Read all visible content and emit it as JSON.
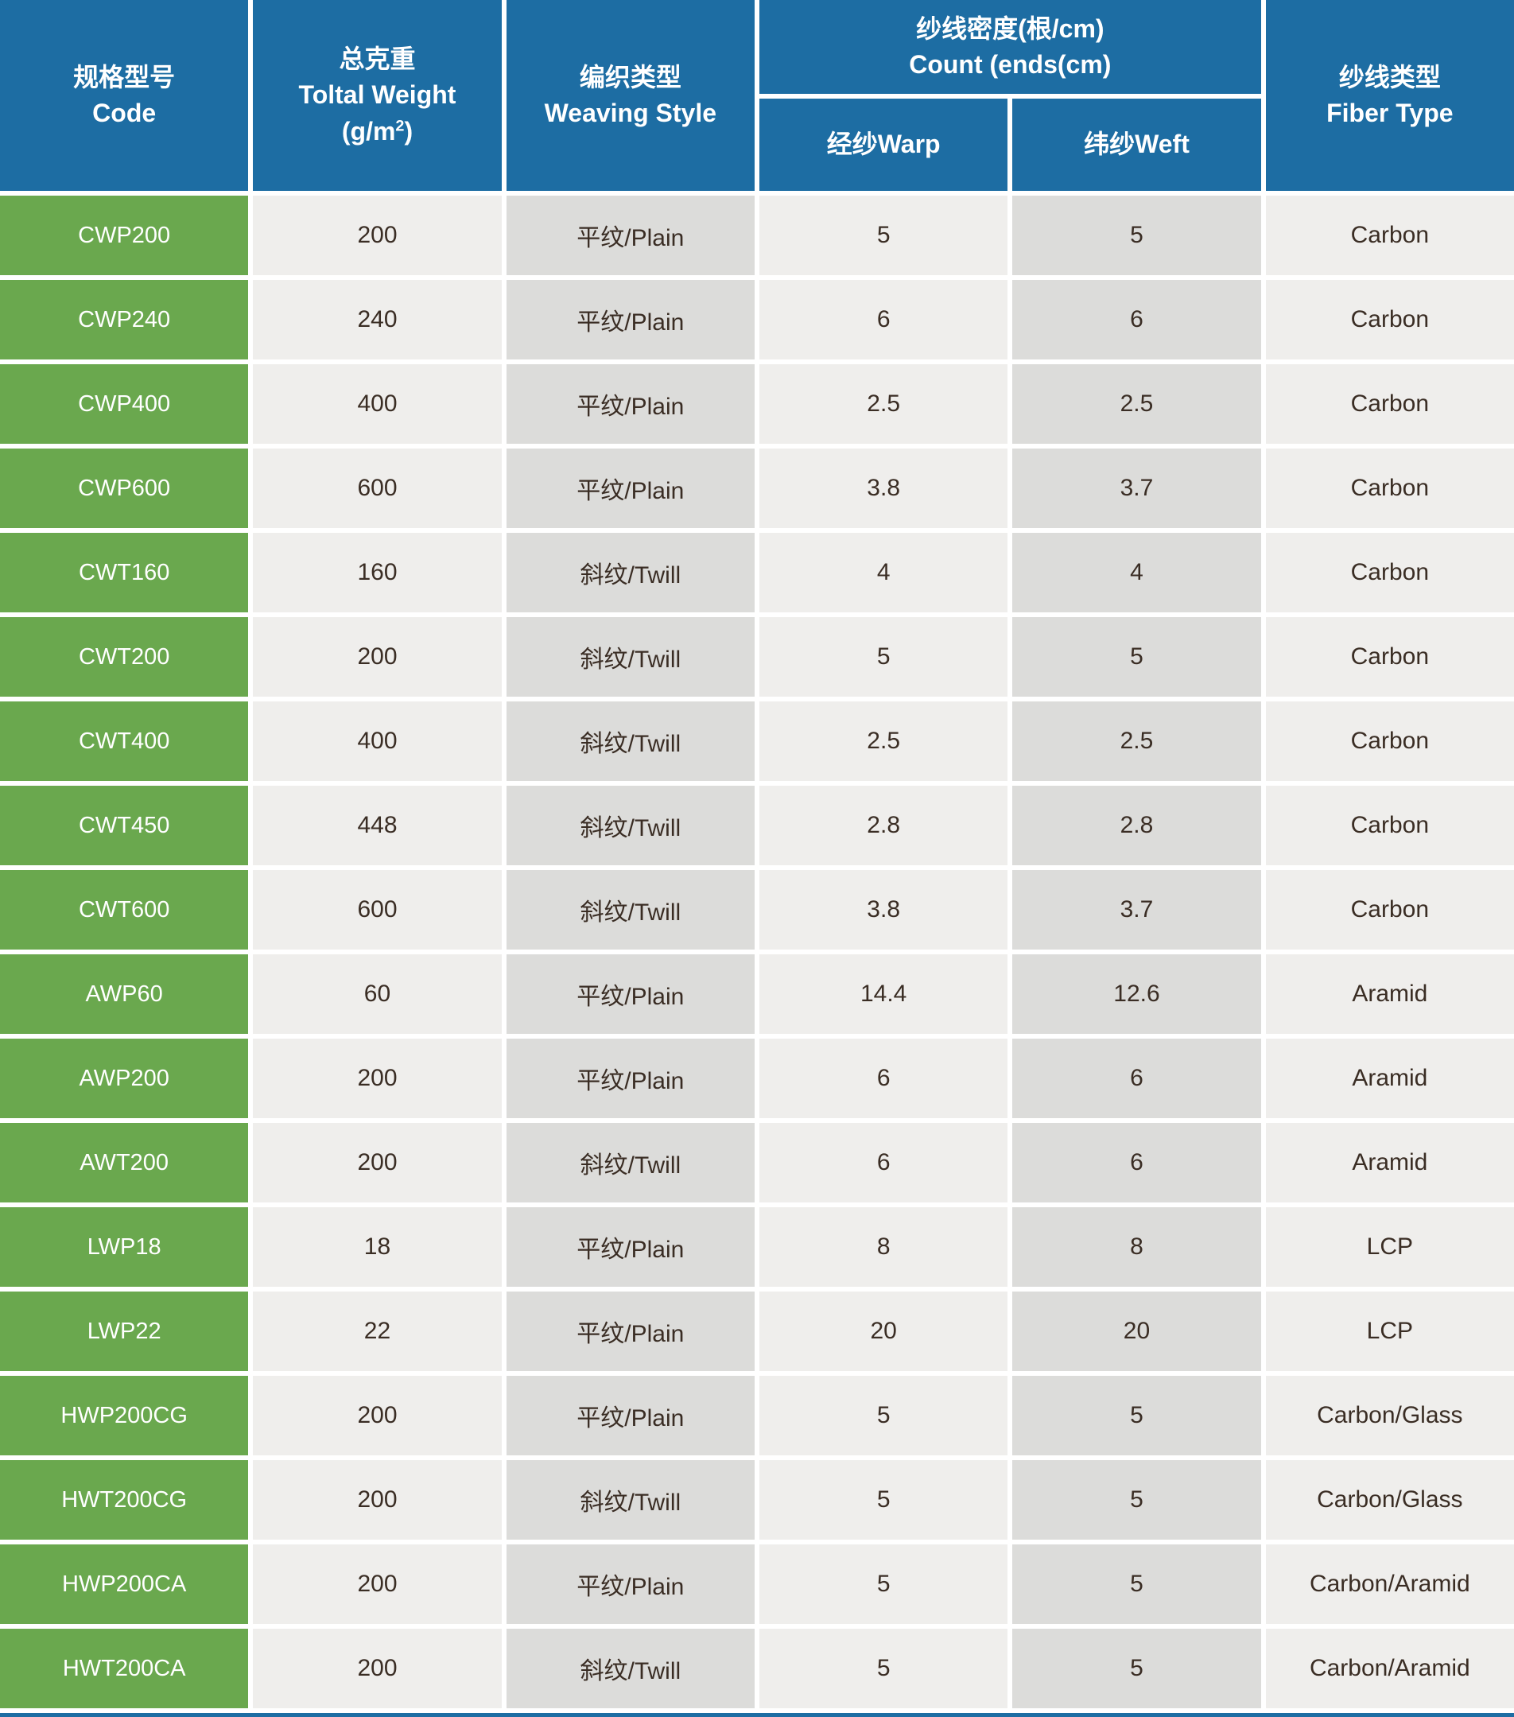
{
  "colors": {
    "header_blue": "#1d6da3",
    "row_green": "#6aa84e",
    "cell_light": "#efeeec",
    "cell_mid": "#dcdcda",
    "text_dark": "#3a2d24"
  },
  "header": {
    "code": {
      "zh": "规格型号",
      "en": "Code"
    },
    "weight": {
      "zh": "总克重",
      "en": "Toltal Weight",
      "unit_prefix": "(g/m",
      "unit_sup": "2",
      "unit_suffix": ")"
    },
    "weave": {
      "zh": "编织类型",
      "en": "Weaving Style"
    },
    "count": {
      "zh": "纱线密度(根/cm)",
      "en": "Count (ends(cm)"
    },
    "warp": {
      "label": "经纱Warp"
    },
    "weft": {
      "label": "纬纱Weft"
    },
    "fiber": {
      "zh": "纱线类型",
      "en": "Fiber Type"
    }
  },
  "rows": [
    {
      "code": "CWP200",
      "weight": "200",
      "weave": "平纹/Plain",
      "warp": "5",
      "weft": "5",
      "fiber": "Carbon"
    },
    {
      "code": "CWP240",
      "weight": "240",
      "weave": "平纹/Plain",
      "warp": "6",
      "weft": "6",
      "fiber": "Carbon"
    },
    {
      "code": "CWP400",
      "weight": "400",
      "weave": "平纹/Plain",
      "warp": "2.5",
      "weft": "2.5",
      "fiber": "Carbon"
    },
    {
      "code": "CWP600",
      "weight": "600",
      "weave": "平纹/Plain",
      "warp": "3.8",
      "weft": "3.7",
      "fiber": "Carbon"
    },
    {
      "code": "CWT160",
      "weight": "160",
      "weave": "斜纹/Twill",
      "warp": "4",
      "weft": "4",
      "fiber": "Carbon"
    },
    {
      "code": "CWT200",
      "weight": "200",
      "weave": "斜纹/Twill",
      "warp": "5",
      "weft": "5",
      "fiber": "Carbon"
    },
    {
      "code": "CWT400",
      "weight": "400",
      "weave": "斜纹/Twill",
      "warp": "2.5",
      "weft": "2.5",
      "fiber": "Carbon"
    },
    {
      "code": "CWT450",
      "weight": "448",
      "weave": "斜纹/Twill",
      "warp": "2.8",
      "weft": "2.8",
      "fiber": "Carbon"
    },
    {
      "code": "CWT600",
      "weight": "600",
      "weave": "斜纹/Twill",
      "warp": "3.8",
      "weft": "3.7",
      "fiber": "Carbon"
    },
    {
      "code": "AWP60",
      "weight": "60",
      "weave": "平纹/Plain",
      "warp": "14.4",
      "weft": "12.6",
      "fiber": "Aramid"
    },
    {
      "code": "AWP200",
      "weight": "200",
      "weave": "平纹/Plain",
      "warp": "6",
      "weft": "6",
      "fiber": "Aramid"
    },
    {
      "code": "AWT200",
      "weight": "200",
      "weave": "斜纹/Twill",
      "warp": "6",
      "weft": "6",
      "fiber": "Aramid"
    },
    {
      "code": "LWP18",
      "weight": "18",
      "weave": "平纹/Plain",
      "warp": "8",
      "weft": "8",
      "fiber": "LCP"
    },
    {
      "code": "LWP22",
      "weight": "22",
      "weave": "平纹/Plain",
      "warp": "20",
      "weft": "20",
      "fiber": "LCP"
    },
    {
      "code": "HWP200CG",
      "weight": "200",
      "weave": "平纹/Plain",
      "warp": "5",
      "weft": "5",
      "fiber": "Carbon/Glass"
    },
    {
      "code": "HWT200CG",
      "weight": "200",
      "weave": "斜纹/Twill",
      "warp": "5",
      "weft": "5",
      "fiber": "Carbon/Glass"
    },
    {
      "code": "HWP200CA",
      "weight": "200",
      "weave": "平纹/Plain",
      "warp": "5",
      "weft": "5",
      "fiber": "Carbon/Aramid"
    },
    {
      "code": "HWT200CA",
      "weight": "200",
      "weave": "斜纹/Twill",
      "warp": "5",
      "weft": "5",
      "fiber": "Carbon/Aramid"
    }
  ]
}
